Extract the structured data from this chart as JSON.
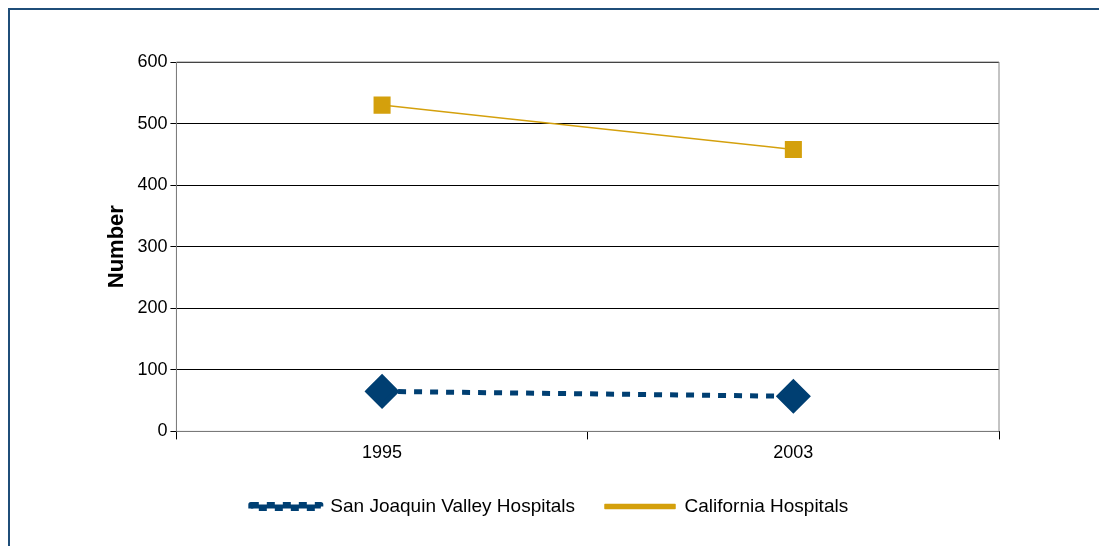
{
  "chart_data": {
    "type": "line",
    "ylabel": "Number",
    "categories": [
      "1995",
      "2003"
    ],
    "series": [
      {
        "name": "San Joaquin Valley Hospitals",
        "color": "#003f72",
        "values": [
          65,
          57
        ],
        "marker": "diamond",
        "line_style": "dashed"
      },
      {
        "name": "California Hospitals",
        "color": "#d4a00c",
        "values": [
          530,
          458
        ],
        "marker": "square",
        "line_style": "solid"
      }
    ],
    "ylim": [
      0,
      600
    ],
    "yticks": [
      0,
      100,
      200,
      300,
      400,
      500,
      600
    ],
    "grid": "y",
    "legend": "bottom"
  }
}
